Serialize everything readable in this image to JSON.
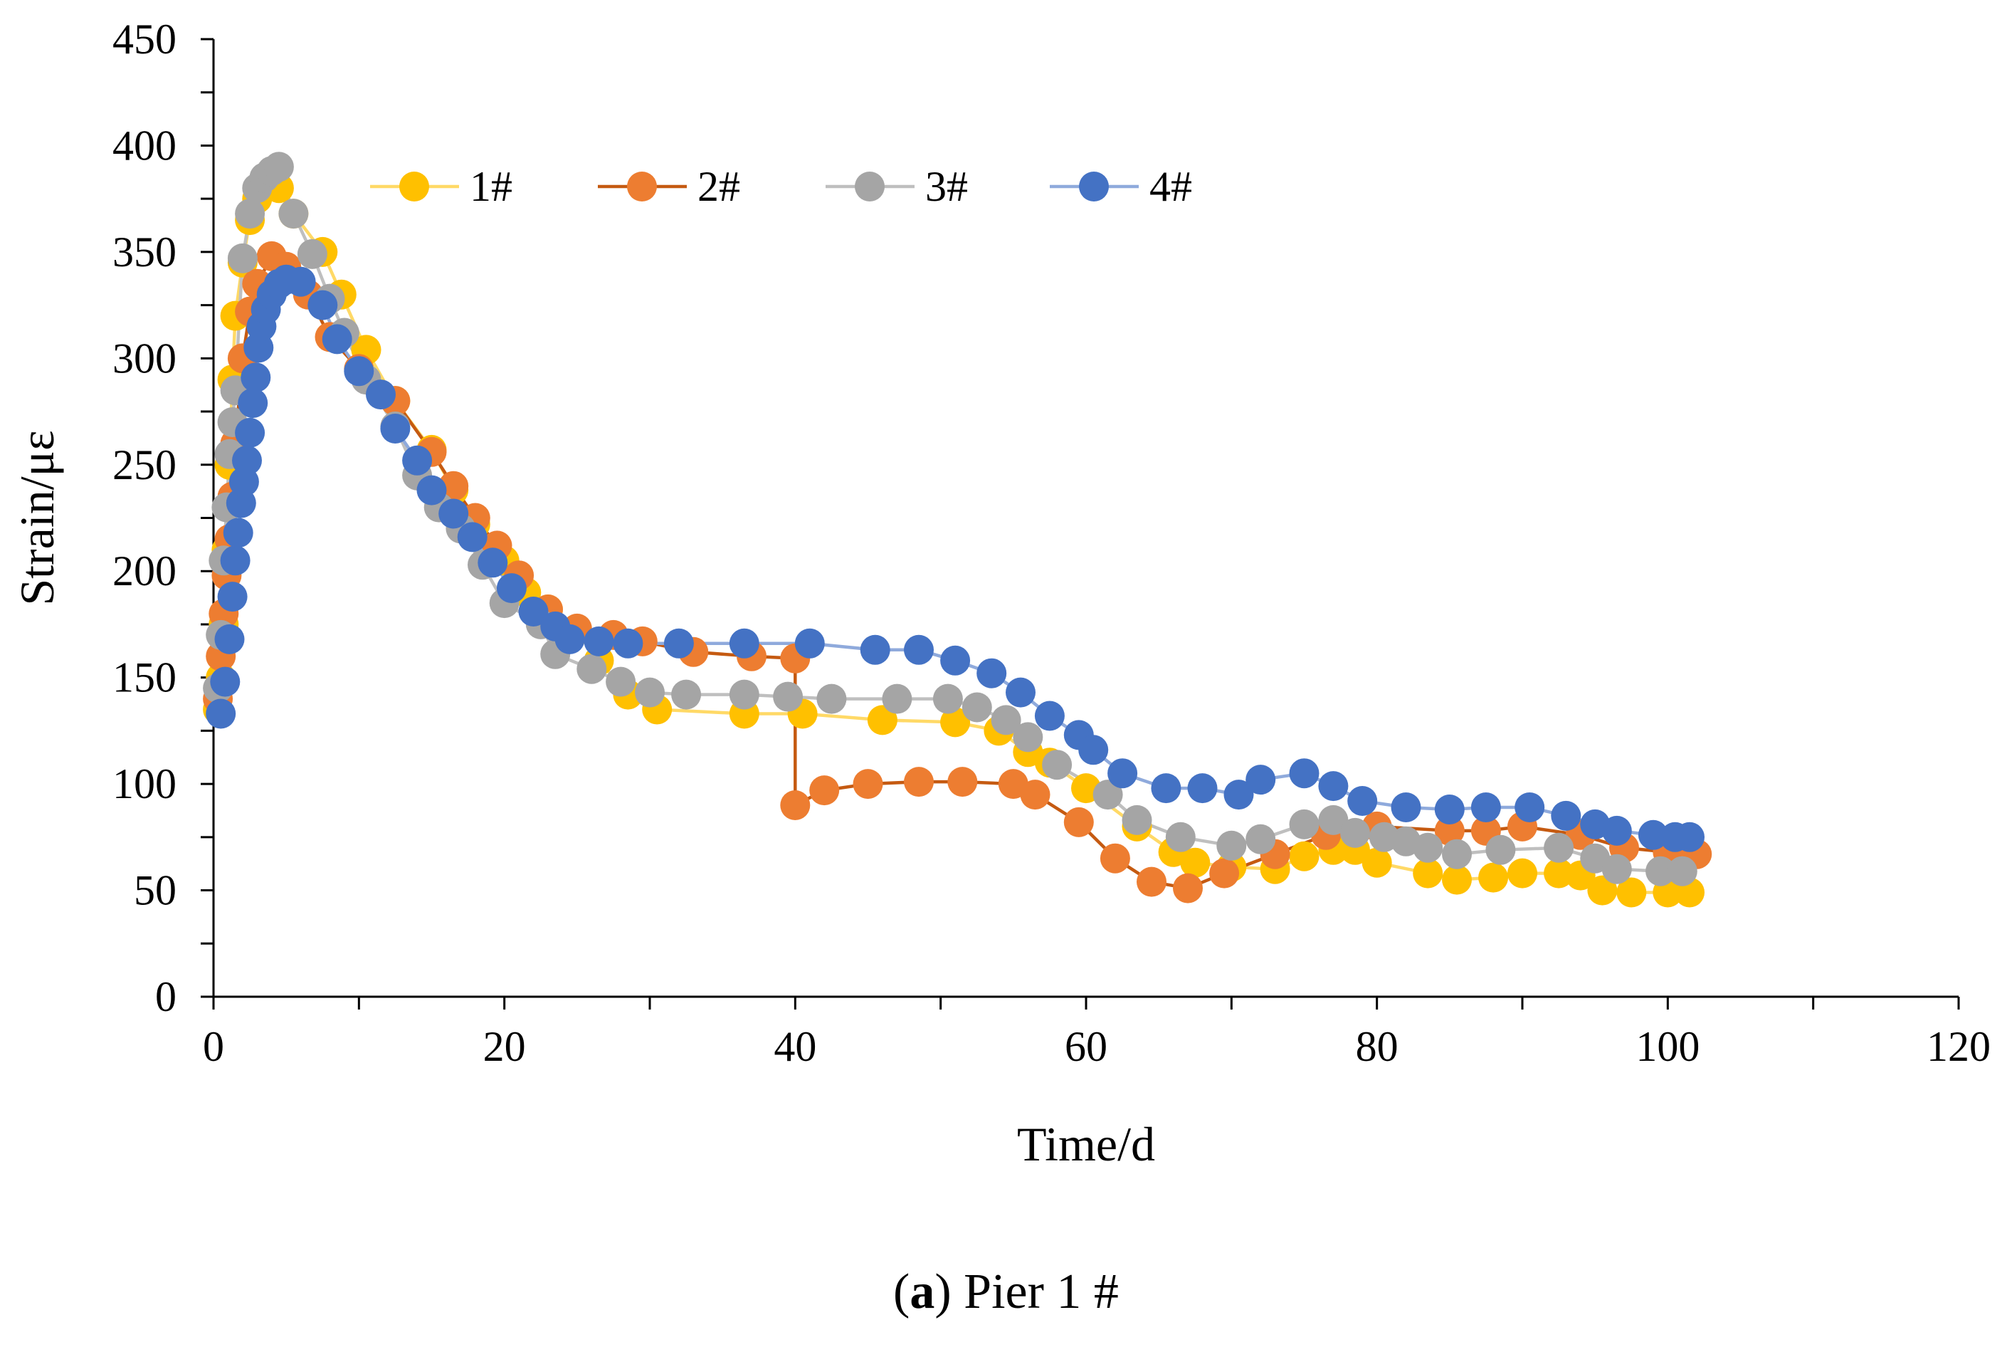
{
  "chart_data": {
    "type": "line",
    "title": "",
    "xlabel": "Time/d",
    "ylabel": "Strain/με",
    "xlim": [
      0,
      120
    ],
    "ylim": [
      0,
      450
    ],
    "xticks": [
      "0",
      "20",
      "40",
      "60",
      "80",
      "100",
      "120"
    ],
    "yticks": [
      "0",
      "50",
      "100",
      "150",
      "200",
      "250",
      "300",
      "350",
      "400",
      "450"
    ],
    "grid": false,
    "legend_position": "top",
    "series": [
      {
        "name": "1#",
        "color": "#FFC000",
        "line_color": "#FFD966",
        "points": [
          [
            0.3,
            135
          ],
          [
            0.5,
            150
          ],
          [
            0.7,
            175
          ],
          [
            0.9,
            210
          ],
          [
            1.1,
            250
          ],
          [
            1.3,
            290
          ],
          [
            1.5,
            320
          ],
          [
            2.0,
            345
          ],
          [
            2.5,
            365
          ],
          [
            3.0,
            375
          ],
          [
            3.5,
            380
          ],
          [
            4.5,
            380
          ],
          [
            5.5,
            368
          ],
          [
            7.5,
            350
          ],
          [
            8.8,
            330
          ],
          [
            10.5,
            304
          ],
          [
            12.5,
            280
          ],
          [
            15.0,
            257
          ],
          [
            16.5,
            238
          ],
          [
            18.0,
            222
          ],
          [
            20.0,
            205
          ],
          [
            21.5,
            190
          ],
          [
            23.0,
            182
          ],
          [
            25.0,
            172
          ],
          [
            26.5,
            158
          ],
          [
            28.5,
            142
          ],
          [
            30.5,
            135
          ],
          [
            36.5,
            133
          ],
          [
            40.5,
            133
          ],
          [
            46.0,
            130
          ],
          [
            51.0,
            129
          ],
          [
            54.0,
            125
          ],
          [
            56.0,
            115
          ],
          [
            57.5,
            110
          ],
          [
            60.0,
            98
          ],
          [
            63.5,
            80
          ],
          [
            66.0,
            68
          ],
          [
            67.5,
            63
          ],
          [
            70.0,
            61
          ],
          [
            73.0,
            60
          ],
          [
            75.0,
            66
          ],
          [
            77.0,
            69
          ],
          [
            78.5,
            69
          ],
          [
            80.0,
            63
          ],
          [
            83.5,
            58
          ],
          [
            85.5,
            55
          ],
          [
            88.0,
            56
          ],
          [
            90.0,
            58
          ],
          [
            92.5,
            58
          ],
          [
            94.0,
            57
          ],
          [
            95.5,
            50
          ],
          [
            97.5,
            49
          ],
          [
            100.0,
            49
          ],
          [
            101.5,
            49
          ]
        ]
      },
      {
        "name": "2#",
        "color": "#ED7D31",
        "line_color": "#C55A11",
        "points": [
          [
            0.3,
            140
          ],
          [
            0.5,
            160
          ],
          [
            0.7,
            180
          ],
          [
            0.9,
            198
          ],
          [
            1.1,
            215
          ],
          [
            1.3,
            235
          ],
          [
            1.5,
            260
          ],
          [
            2.0,
            300
          ],
          [
            2.5,
            322
          ],
          [
            3.0,
            335
          ],
          [
            4.0,
            348
          ],
          [
            5.0,
            343
          ],
          [
            6.5,
            330
          ],
          [
            8.0,
            310
          ],
          [
            10.0,
            295
          ],
          [
            12.5,
            280
          ],
          [
            15.0,
            256
          ],
          [
            16.5,
            240
          ],
          [
            18.0,
            225
          ],
          [
            19.5,
            212
          ],
          [
            21.0,
            198
          ],
          [
            23.0,
            182
          ],
          [
            25.0,
            173
          ],
          [
            27.5,
            170
          ],
          [
            29.5,
            167
          ],
          [
            33.0,
            162
          ],
          [
            37.0,
            160
          ],
          [
            40.0,
            159
          ],
          [
            40.0,
            90
          ],
          [
            42.0,
            97
          ],
          [
            45.0,
            100
          ],
          [
            48.5,
            101
          ],
          [
            51.5,
            101
          ],
          [
            55.0,
            100
          ],
          [
            56.5,
            95
          ],
          [
            59.5,
            82
          ],
          [
            62.0,
            65
          ],
          [
            64.5,
            54
          ],
          [
            67.0,
            51
          ],
          [
            69.5,
            58
          ],
          [
            73.0,
            67
          ],
          [
            76.5,
            76
          ],
          [
            80.0,
            80
          ],
          [
            85.0,
            78
          ],
          [
            87.5,
            78
          ],
          [
            90.0,
            80
          ],
          [
            94.0,
            76
          ],
          [
            97.0,
            70
          ],
          [
            100.0,
            68
          ],
          [
            102.0,
            67
          ]
        ]
      },
      {
        "name": "3#",
        "color": "#A5A5A5",
        "line_color": "#BFBFBF",
        "points": [
          [
            0.3,
            145
          ],
          [
            0.5,
            170
          ],
          [
            0.7,
            205
          ],
          [
            0.9,
            230
          ],
          [
            1.1,
            255
          ],
          [
            1.3,
            270
          ],
          [
            1.5,
            285
          ],
          [
            2.0,
            347
          ],
          [
            2.5,
            368
          ],
          [
            3.0,
            380
          ],
          [
            3.5,
            385
          ],
          [
            4.0,
            388
          ],
          [
            4.5,
            390
          ],
          [
            5.5,
            368
          ],
          [
            6.8,
            349
          ],
          [
            8.0,
            328
          ],
          [
            9.0,
            312
          ],
          [
            10.5,
            290
          ],
          [
            12.5,
            268
          ],
          [
            14.0,
            245
          ],
          [
            15.5,
            230
          ],
          [
            17.0,
            220
          ],
          [
            18.5,
            203
          ],
          [
            20.0,
            185
          ],
          [
            22.5,
            175
          ],
          [
            23.5,
            161
          ],
          [
            26.0,
            154
          ],
          [
            28.0,
            148
          ],
          [
            30.0,
            143
          ],
          [
            32.5,
            142
          ],
          [
            36.5,
            142
          ],
          [
            39.5,
            141
          ],
          [
            42.5,
            140
          ],
          [
            47.0,
            140
          ],
          [
            50.5,
            140
          ],
          [
            52.5,
            136
          ],
          [
            54.5,
            130
          ],
          [
            56.0,
            122
          ],
          [
            58.0,
            109
          ],
          [
            61.5,
            95
          ],
          [
            63.5,
            83
          ],
          [
            66.5,
            75
          ],
          [
            70.0,
            71
          ],
          [
            72.0,
            74
          ],
          [
            75.0,
            81
          ],
          [
            77.0,
            83
          ],
          [
            78.5,
            77
          ],
          [
            80.5,
            75
          ],
          [
            82.0,
            73
          ],
          [
            83.5,
            70
          ],
          [
            85.5,
            67
          ],
          [
            88.5,
            69
          ],
          [
            92.5,
            70
          ],
          [
            95.0,
            65
          ],
          [
            96.5,
            60
          ],
          [
            99.5,
            59
          ],
          [
            101.0,
            59
          ]
        ]
      },
      {
        "name": "4#",
        "color": "#4472C4",
        "line_color": "#8FAADC",
        "points": [
          [
            0.5,
            133
          ],
          [
            0.8,
            148
          ],
          [
            1.1,
            168
          ],
          [
            1.3,
            188
          ],
          [
            1.5,
            205
          ],
          [
            1.7,
            218
          ],
          [
            1.9,
            232
          ],
          [
            2.1,
            242
          ],
          [
            2.3,
            252
          ],
          [
            2.5,
            265
          ],
          [
            2.7,
            279
          ],
          [
            2.9,
            291
          ],
          [
            3.1,
            305
          ],
          [
            3.3,
            315
          ],
          [
            3.6,
            323
          ],
          [
            4.0,
            330
          ],
          [
            4.5,
            335
          ],
          [
            5.0,
            337
          ],
          [
            6.0,
            336
          ],
          [
            7.5,
            325
          ],
          [
            8.5,
            309
          ],
          [
            10.0,
            294
          ],
          [
            11.5,
            283
          ],
          [
            12.5,
            267
          ],
          [
            14.0,
            252
          ],
          [
            15.0,
            238
          ],
          [
            16.5,
            227
          ],
          [
            17.8,
            216
          ],
          [
            19.2,
            204
          ],
          [
            20.5,
            192
          ],
          [
            22.0,
            181
          ],
          [
            23.5,
            174
          ],
          [
            24.5,
            168
          ],
          [
            26.5,
            167
          ],
          [
            28.5,
            166
          ],
          [
            32.0,
            166
          ],
          [
            36.5,
            166
          ],
          [
            41.0,
            166
          ],
          [
            45.5,
            163
          ],
          [
            48.5,
            163
          ],
          [
            51.0,
            158
          ],
          [
            53.5,
            152
          ],
          [
            55.5,
            143
          ],
          [
            57.5,
            132
          ],
          [
            59.5,
            123
          ],
          [
            60.5,
            116
          ],
          [
            62.5,
            105
          ],
          [
            65.5,
            98
          ],
          [
            68.0,
            98
          ],
          [
            70.5,
            95
          ],
          [
            72.0,
            102
          ],
          [
            75.0,
            105
          ],
          [
            77.0,
            99
          ],
          [
            79.0,
            92
          ],
          [
            82.0,
            89
          ],
          [
            85.0,
            88
          ],
          [
            87.5,
            89
          ],
          [
            90.5,
            89
          ],
          [
            93.0,
            85
          ],
          [
            95.0,
            81
          ],
          [
            96.5,
            78
          ],
          [
            99.0,
            76
          ],
          [
            100.5,
            75
          ],
          [
            101.5,
            75
          ]
        ]
      }
    ]
  },
  "caption": {
    "letter": "a",
    "text": "Pier 1 #"
  }
}
